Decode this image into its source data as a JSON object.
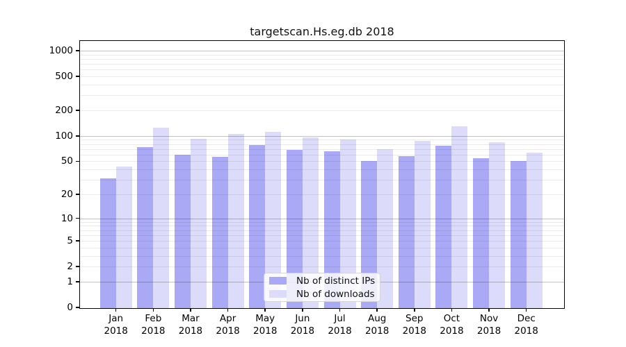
{
  "chart_data": {
    "type": "bar",
    "title": "targetscan.Hs.eg.db 2018",
    "y_scale": "log1p",
    "grid": true,
    "legend_position": "lower center",
    "categories": [
      "Jan",
      "Feb",
      "Mar",
      "Apr",
      "May",
      "Jun",
      "Jul",
      "Aug",
      "Sep",
      "Oct",
      "Nov",
      "Dec"
    ],
    "year": "2018",
    "y_ticks": [
      0,
      1,
      2,
      5,
      10,
      20,
      50,
      100,
      200,
      500,
      1000
    ],
    "y_major_gridlines": [
      1,
      10,
      100,
      1000
    ],
    "y_minor_gridlines": [
      2,
      3,
      4,
      5,
      6,
      7,
      8,
      9,
      20,
      30,
      40,
      50,
      60,
      70,
      80,
      90,
      200,
      300,
      400,
      500,
      600,
      700,
      800,
      900
    ],
    "ylim": [
      0,
      1300
    ],
    "series": [
      {
        "name": "Nb of distinct IPs",
        "color": "#a9a9f6",
        "values": [
          31,
          74,
          60,
          57,
          78,
          68,
          66,
          50,
          58,
          77,
          54,
          50
        ]
      },
      {
        "name": "Nb of downloads",
        "color": "#dcdcfa",
        "values": [
          43,
          126,
          92,
          105,
          112,
          96,
          91,
          70,
          88,
          131,
          84,
          63
        ]
      }
    ]
  },
  "colors": {
    "axis": "#000000",
    "background": "#ffffff",
    "grid_minor": "rgba(0,0,0,0.08)",
    "grid_major": "rgba(0,0,0,0.24)",
    "legend_border": "#d4d4d4",
    "legend_background": "rgba(255,255,255,0.8)"
  }
}
